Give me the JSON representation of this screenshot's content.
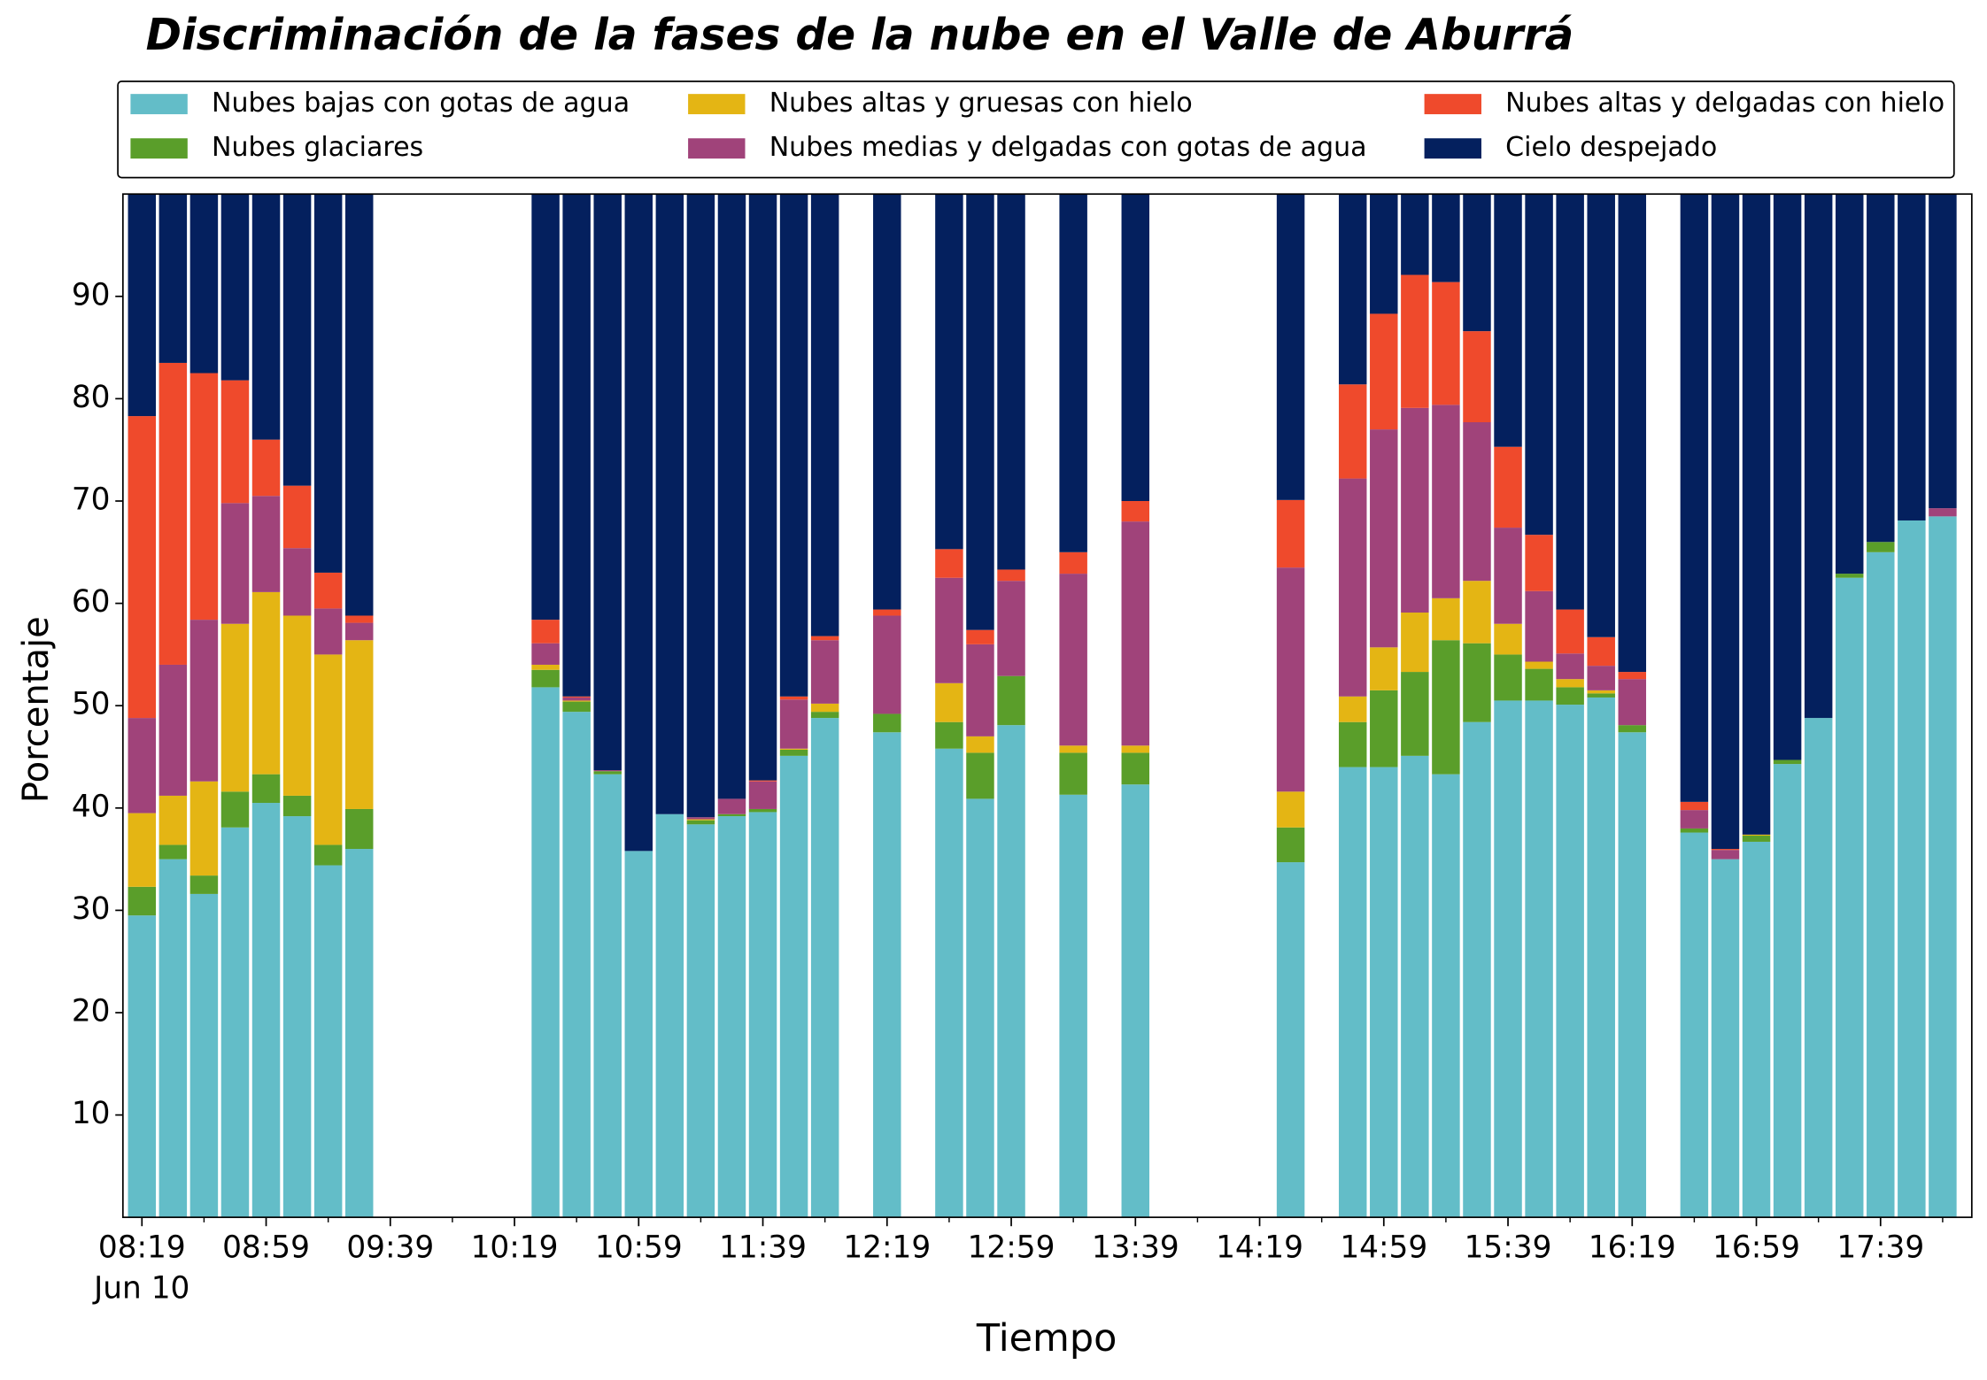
{
  "chart_data": {
    "type": "stacked_bar",
    "title": "Discriminación de la fases de la nube en el Valle de Aburrá",
    "xlabel": "Tiempo",
    "ylabel": "Porcentaje",
    "date_label": "Jun 10",
    "categories": [
      "08:19",
      null,
      null,
      null,
      "08:59",
      null,
      null,
      null,
      "09:39",
      null,
      null,
      null,
      "10:19",
      null,
      null,
      null,
      "10:59",
      null,
      null,
      null,
      "11:39",
      null,
      null,
      null,
      "12:19",
      null,
      null,
      null,
      "12:59",
      null,
      null,
      null,
      "13:39",
      null,
      null,
      null,
      "14:19",
      null,
      null,
      null,
      "14:59",
      null,
      null,
      null,
      "15:39",
      null,
      null,
      null,
      "16:19",
      null,
      null,
      null,
      "16:59",
      null,
      null,
      null,
      "17:39",
      null,
      null
    ],
    "ylim": [
      0,
      100
    ],
    "yticks": [
      10,
      20,
      30,
      40,
      50,
      60,
      70,
      80,
      90
    ],
    "legend": "top-outside",
    "series": [
      {
        "name": "Nubes bajas con gotas de agua",
        "color": "#63bdc8",
        "values": [
          29.5,
          35,
          31.6,
          38.1,
          40.5,
          39.2,
          34.4,
          36,
          null,
          null,
          null,
          null,
          null,
          51.8,
          49.4,
          43.3,
          35.8,
          39.4,
          38.4,
          39.2,
          39.6,
          45.1,
          48.8,
          null,
          47.4,
          null,
          45.8,
          40.9,
          48.1,
          null,
          41.3,
          null,
          42.3,
          null,
          null,
          null,
          null,
          34.7,
          null,
          44,
          44,
          45.1,
          43.3,
          48.4,
          50.5,
          50.5,
          50.1,
          50.8,
          47.4,
          null,
          37.6,
          35,
          36.7,
          44.3,
          48.8,
          62.5,
          65,
          68.1,
          68.5
        ]
      },
      {
        "name": "Nubes glaciares",
        "color": "#5a9e2a",
        "values": [
          2.8,
          1.4,
          1.8,
          3.5,
          2.8,
          2,
          2,
          3.9,
          null,
          null,
          null,
          null,
          null,
          1.7,
          1.0,
          0.3,
          0,
          0,
          0.4,
          0.2,
          0.3,
          0.6,
          0.6,
          null,
          1.8,
          null,
          2.6,
          4.5,
          4.8,
          null,
          4.1,
          null,
          3.1,
          null,
          null,
          null,
          null,
          3.4,
          null,
          4.4,
          7.5,
          8.2,
          13.1,
          7.7,
          4.5,
          3.1,
          1.7,
          0.4,
          0.7,
          null,
          0.4,
          0,
          0.6,
          0.4,
          0,
          0.4,
          1,
          0,
          0
        ]
      },
      {
        "name": "Nubes altas y gruesas con hielo",
        "color": "#e4b514",
        "values": [
          7.2,
          4.8,
          9.2,
          16.4,
          17.8,
          17.6,
          18.6,
          16.5,
          null,
          null,
          null,
          null,
          null,
          0.5,
          0.1,
          0,
          0,
          0,
          0.1,
          0,
          0,
          0.1,
          0.8,
          null,
          0,
          null,
          3.8,
          1.6,
          0,
          null,
          0.7,
          null,
          0.7,
          null,
          null,
          null,
          null,
          3.5,
          null,
          2.5,
          4.2,
          5.8,
          4.1,
          6.1,
          3,
          0.7,
          0.8,
          0.3,
          0,
          null,
          0,
          0,
          0.1,
          0,
          0,
          0,
          0,
          0,
          0
        ]
      },
      {
        "name": "Nubes medias y delgadas con gotas de agua",
        "color": "#a0437a",
        "values": [
          9.3,
          12.8,
          15.8,
          11.8,
          9.4,
          6.6,
          4.5,
          1.7,
          null,
          null,
          null,
          null,
          null,
          2.1,
          0.3,
          0.1,
          0,
          0,
          0.2,
          1.5,
          2.7,
          4.8,
          6.2,
          null,
          9.6,
          null,
          10.3,
          9,
          9.3,
          null,
          16.8,
          null,
          21.9,
          null,
          null,
          null,
          null,
          21.9,
          null,
          21.3,
          21.3,
          20,
          18.9,
          15.5,
          9.4,
          6.9,
          2.5,
          2.4,
          4.5,
          null,
          1.8,
          0.9,
          0,
          0,
          0,
          0,
          0,
          0,
          0.8
        ]
      },
      {
        "name": "Nubes altas y delgadas con hielo",
        "color": "#ef4a2c",
        "values": [
          29.5,
          29.5,
          24.1,
          12,
          5.5,
          6.1,
          3.5,
          0.7,
          null,
          null,
          null,
          null,
          null,
          2.3,
          0.1,
          0,
          0,
          0,
          0,
          0,
          0.1,
          0.3,
          0.4,
          null,
          0.6,
          null,
          2.8,
          1.4,
          1.1,
          null,
          2.1,
          null,
          2,
          null,
          null,
          null,
          null,
          6.6,
          null,
          9.2,
          11.3,
          13,
          12,
          8.9,
          7.9,
          5.5,
          4.3,
          2.8,
          0.7,
          null,
          0.8,
          0.1,
          0,
          0,
          0,
          0,
          0,
          0,
          0
        ]
      },
      {
        "name": "Cielo despejado",
        "color": "#04205e",
        "values": [
          21.7,
          16.5,
          17.5,
          18.2,
          24,
          28.5,
          37,
          41.2,
          null,
          null,
          null,
          null,
          null,
          41.6,
          49.1,
          56.3,
          64.2,
          60.6,
          60.9,
          59.1,
          57.3,
          49.1,
          43.2,
          null,
          40.6,
          null,
          34.7,
          42.6,
          36.7,
          null,
          35,
          null,
          30,
          null,
          null,
          null,
          null,
          29.9,
          null,
          18.6,
          11.7,
          7.9,
          8.6,
          13.4,
          24.7,
          33.3,
          40.6,
          43.3,
          46.7,
          null,
          59.4,
          64,
          62.6,
          55.3,
          51.2,
          37.1,
          34,
          31.9,
          30.7
        ]
      }
    ]
  }
}
